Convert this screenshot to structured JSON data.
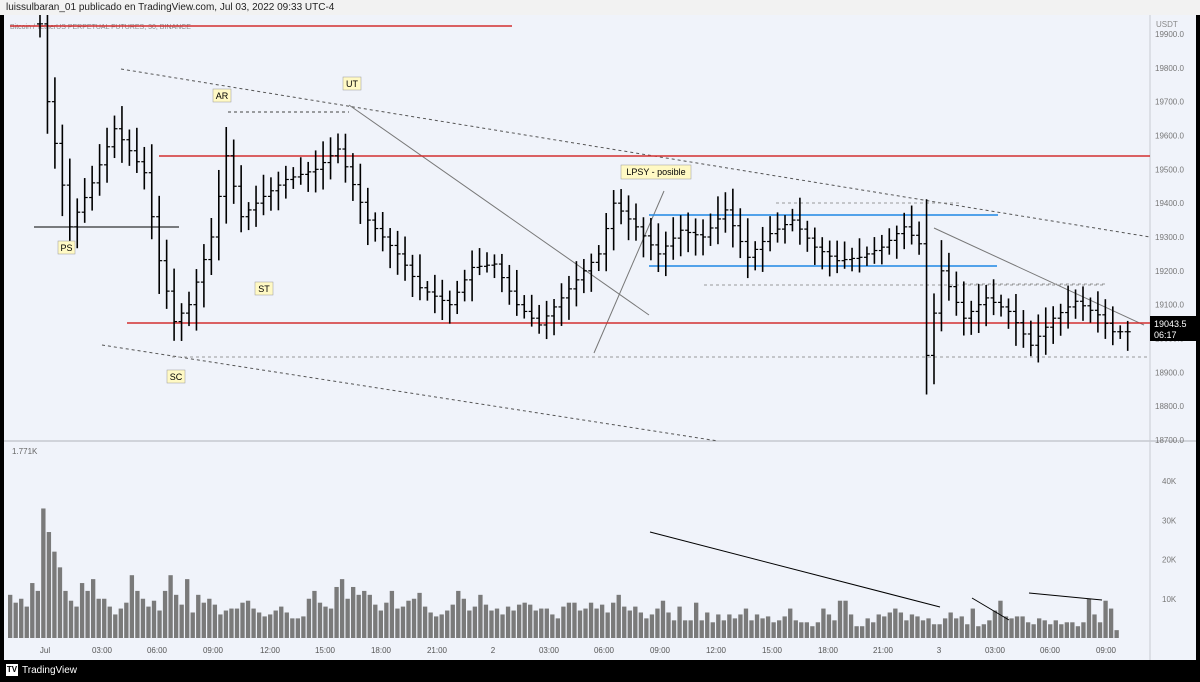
{
  "header": {
    "title": "luissulbaran_01 publicado en TradingView.com, Jul 03, 2022 09:33 UTC-4"
  },
  "symbol_line": "Bitcoin / TetherUS PERPETUAL FUTURES, 30, BINANCE",
  "footer": {
    "logo": "TradingView"
  },
  "colors": {
    "support_red": "#d32f2f",
    "range_blue": "#1e88e5",
    "bars": "#000000",
    "volume": "#7a7a7a"
  },
  "chart_data": [
    {
      "type": "ohlc",
      "unit_label": "USDT",
      "ylim": [
        18700,
        19900
      ],
      "y_ticks": [
        "19900.0",
        "19800.0",
        "19700.0",
        "19600.0",
        "19500.0",
        "19400.0",
        "19300.0",
        "19200.0",
        "19100.0",
        "19000.0",
        "18900.0",
        "18800.0",
        "18700.0"
      ],
      "x_ticks": [
        "Jul",
        "03:00",
        "06:00",
        "09:00",
        "12:00",
        "15:00",
        "18:00",
        "21:00",
        "2",
        "03:00",
        "06:00",
        "09:00",
        "12:00",
        "15:00",
        "18:00",
        "21:00",
        "3",
        "03:00",
        "06:00",
        "09:00"
      ],
      "last_price": "19043.5",
      "countdown": "06:17",
      "horizontal_levels": [
        19920,
        19535,
        19040
      ],
      "range_lines": [
        19360,
        19210
      ],
      "annotations": [
        "PS",
        "AR",
        "UT",
        "SC",
        "ST",
        "LPSY - posible"
      ],
      "price_points": [
        [
          0,
          19930
        ],
        [
          1,
          19700
        ],
        [
          4,
          19330
        ],
        [
          7,
          19460
        ],
        [
          10,
          19620
        ],
        [
          14,
          19490
        ],
        [
          16,
          19230
        ],
        [
          18,
          19050
        ],
        [
          20,
          19100
        ],
        [
          23,
          19300
        ],
        [
          25,
          19540
        ],
        [
          27,
          19360
        ],
        [
          30,
          19420
        ],
        [
          33,
          19470
        ],
        [
          37,
          19500
        ],
        [
          40,
          19560
        ],
        [
          44,
          19350
        ],
        [
          48,
          19250
        ],
        [
          51,
          19150
        ],
        [
          55,
          19100
        ],
        [
          58,
          19210
        ],
        [
          61,
          19220
        ],
        [
          64,
          19100
        ],
        [
          67,
          19040
        ],
        [
          70,
          19120
        ],
        [
          73,
          19200
        ],
        [
          75,
          19250
        ],
        [
          77,
          19400
        ],
        [
          80,
          19330
        ],
        [
          83,
          19250
        ],
        [
          86,
          19320
        ],
        [
          89,
          19300
        ],
        [
          92,
          19380
        ],
        [
          95,
          19240
        ],
        [
          98,
          19310
        ],
        [
          101,
          19350
        ],
        [
          104,
          19270
        ],
        [
          107,
          19230
        ],
        [
          110,
          19240
        ],
        [
          113,
          19270
        ],
        [
          116,
          19330
        ],
        [
          118,
          19280
        ],
        [
          119,
          18950
        ],
        [
          121,
          19200
        ],
        [
          124,
          19060
        ],
        [
          127,
          19120
        ],
        [
          130,
          19080
        ],
        [
          133,
          18980
        ],
        [
          136,
          19060
        ],
        [
          139,
          19110
        ],
        [
          142,
          19070
        ],
        [
          144,
          19020
        ],
        [
          146,
          19020
        ]
      ]
    },
    {
      "type": "bar",
      "series_label": "1.771K",
      "y_ticks": [
        "40K",
        "30K",
        "20K",
        "10K"
      ],
      "ylim": [
        0,
        50000
      ],
      "values": [
        11000,
        9000,
        10000,
        8000,
        14000,
        12000,
        33000,
        27000,
        22000,
        18000,
        12000,
        9500,
        8000,
        14000,
        12000,
        15000,
        10000,
        10000,
        8000,
        6000,
        7500,
        9000,
        16000,
        12000,
        10000,
        8000,
        9500,
        7000,
        12000,
        16000,
        11000,
        8500,
        15000,
        6500,
        11000,
        9000,
        10000,
        8500,
        6000,
        7000,
        7500,
        7500,
        9000,
        9500,
        7500,
        6500,
        5500,
        6000,
        7000,
        8000,
        6500,
        5000,
        5000,
        5500,
        10000,
        12000,
        9000,
        8000,
        7500,
        13000,
        15000,
        10000,
        13000,
        11000,
        12000,
        11000,
        8500,
        7000,
        9000,
        12000,
        7500,
        8000,
        9500,
        10000,
        11500,
        8000,
        6500,
        5500,
        6000,
        7000,
        8500,
        12000,
        10000,
        7000,
        8000,
        11000,
        8500,
        7000,
        7500,
        6000,
        8000,
        7000,
        8500,
        9000,
        8500,
        7000,
        7500,
        7500,
        6000,
        5000,
        8000,
        9000,
        9000,
        7000,
        7500,
        9000,
        7500,
        8500,
        6500,
        9000,
        11000,
        8000,
        7000,
        8000,
        6500,
        5000,
        6000,
        7500,
        9500,
        6500,
        4500,
        8000,
        4500,
        4500,
        9000,
        4500,
        6500,
        4000,
        6000,
        4500,
        6000,
        5000,
        6000,
        7500,
        4500,
        6000,
        5000,
        5500,
        4000,
        4500,
        5500,
        7500,
        4500,
        4000,
        4000,
        3000,
        4000,
        7500,
        6000,
        4500,
        9500,
        9500,
        6000,
        3000,
        3000,
        5000,
        4000,
        6000,
        5500,
        6500,
        7500,
        6500,
        4500,
        6000,
        5500,
        4500,
        5000,
        3500,
        3500,
        5000,
        6500,
        5000,
        5500,
        3500,
        7500,
        3000,
        3500,
        4500,
        7000,
        9500,
        5500,
        5000,
        5500,
        5500,
        4000,
        3500,
        5000,
        4500,
        3500,
        4500,
        3500,
        4000,
        4000,
        3000,
        4000,
        10000,
        6000,
        4000,
        9500,
        7500,
        2000
      ]
    }
  ]
}
